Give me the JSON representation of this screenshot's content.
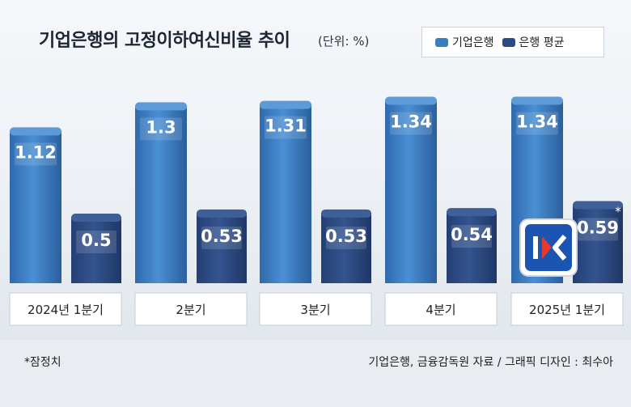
{
  "title": "기업은행의 고정이하여신비율 추이",
  "unit": "(단위: %)",
  "note": "*잠정치",
  "source": "기업은행, 금융감독원 자료 / 그래픽 디자인 : 최수아",
  "colors": {
    "ibk": "#3a7ec2",
    "avg": "#2c4a85",
    "footer": "#e9edf1"
  },
  "chart_data": {
    "type": "bar",
    "title": "기업은행의 고정이하여신비율 추이",
    "categories": [
      "2024년 1분기",
      "2분기",
      "3분기",
      "4분기",
      "2025년 1분기"
    ],
    "series": [
      {
        "name": "기업은행",
        "values": [
          1.12,
          1.3,
          1.31,
          1.34,
          1.34
        ]
      },
      {
        "name": "은행 평균",
        "values": [
          0.5,
          0.53,
          0.53,
          0.54,
          0.59
        ]
      }
    ],
    "value_labels": {
      "기업은행": [
        "1.12",
        "1.3",
        "1.31",
        "1.34",
        "1.34"
      ],
      "은행 평균": [
        "0.5",
        "0.53",
        "0.53",
        "0.54",
        "0.59"
      ]
    },
    "annotation": "*",
    "legend_position": "top-right",
    "grid": false,
    "ylim": [
      0,
      1.5
    ]
  }
}
